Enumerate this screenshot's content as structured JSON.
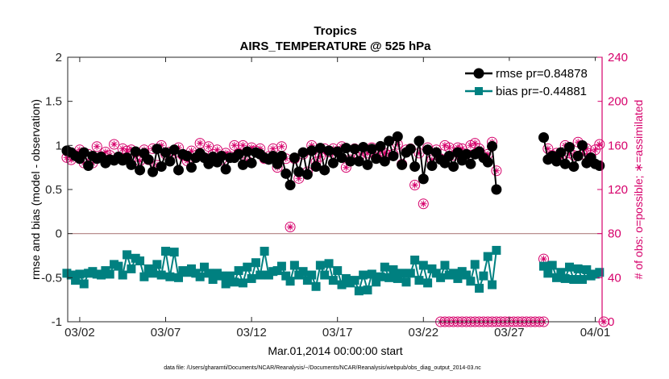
{
  "chart_data": {
    "type": "line",
    "title": "Tropics",
    "subtitle": "AIRS_TEMPERATURE @ 525 hPa",
    "xlabel": "Mar.01,2014 00:00:00 start",
    "ylabel_left": "rmse and bias (model - observation)",
    "ylabel_right": "# of obs: o=possible; ∗=assimilated",
    "ylim_left": [
      -1,
      2
    ],
    "ylim_right": [
      0,
      240
    ],
    "xlim": [
      0.3,
      31.4
    ],
    "yticks_left": [
      "-1",
      "-0.5",
      "0",
      "0.5",
      "1",
      "1.5",
      "2"
    ],
    "yticks_right": [
      "0",
      "40",
      "80",
      "120",
      "160",
      "200",
      "240"
    ],
    "xticks": [
      {
        "x": 1,
        "label": "03/02"
      },
      {
        "x": 6,
        "label": "03/07"
      },
      {
        "x": 11,
        "label": "03/12"
      },
      {
        "x": 16,
        "label": "03/17"
      },
      {
        "x": 21,
        "label": "03/22"
      },
      {
        "x": 26,
        "label": "03/27"
      },
      {
        "x": 31,
        "label": "04/01"
      }
    ],
    "zero_line": 0,
    "footnote": "data file: /Users/gharamti/Documents/NCAR/Reanalysis/~/Documents/NCAR/Reanalysis/webpub/obs_diag_output_2014-03.nc",
    "colors": {
      "rmse": "#000000",
      "bias": "#008080",
      "obs": "#d6006b",
      "zero": "#b08080"
    },
    "series": [
      {
        "name": "rmse",
        "legend": "rmse pr=0.84878",
        "axis": "left",
        "marker": "circle",
        "segments": [
          {
            "x0": 0.25,
            "dx": 0.25,
            "values": [
              0.94,
              0.92,
              0.88,
              0.85,
              0.92,
              0.77,
              0.88,
              0.85,
              0.87,
              0.8,
              0.84,
              0.83,
              0.87,
              0.83,
              0.86,
              0.78,
              0.93,
              0.72,
              0.91,
              0.84,
              0.7,
              0.96,
              0.76,
              0.92,
              0.82,
              0.95,
              0.72,
              0.9,
              0.88,
              0.75,
              0.86,
              0.91,
              0.86,
              0.79,
              0.87,
              0.81,
              0.88,
              0.73,
              0.86,
              0.86,
              0.9,
              0.78,
              0.93,
              0.8,
              0.92,
              0.9,
              0.86,
              0.84,
              0.88,
              0.79,
              0.88,
              0.68,
              0.55,
              0.86,
              0.7,
              0.92,
              0.67,
              0.94,
              0.76,
              0.97,
              0.72,
              0.94,
              0.8,
              0.93,
              0.86,
              0.97,
              0.82,
              0.96,
              0.82,
              0.98,
              0.78,
              0.96,
              0.85,
              0.99,
              0.82,
              1.05,
              0.88,
              1.1,
              0.78,
              0.92,
              0.96,
              0.76,
              1.05,
              0.62,
              0.95,
              0.77,
              0.92,
              0.84,
              0.8,
              0.88,
              0.76,
              0.92,
              0.83,
              0.9,
              0.79,
              0.9,
              0.93,
              0.86,
              0.81,
              0.99,
              0.5
            ]
          },
          {
            "x0": 28.0,
            "dx": 0.25,
            "values": [
              1.09,
              0.84,
              0.88,
              0.82,
              0.92,
              0.79,
              0.98,
              0.76,
              0.88,
              1.0,
              0.8,
              0.86,
              0.79,
              0.77
            ]
          }
        ]
      },
      {
        "name": "bias",
        "legend": "bias pr=-0.44881",
        "axis": "left",
        "marker": "square",
        "segments": [
          {
            "x0": 0.25,
            "dx": 0.25,
            "values": [
              -0.45,
              -0.47,
              -0.53,
              -0.46,
              -0.57,
              -0.45,
              -0.43,
              -0.46,
              -0.47,
              -0.42,
              -0.46,
              -0.35,
              -0.37,
              -0.47,
              -0.24,
              -0.4,
              -0.28,
              -0.31,
              -0.49,
              -0.4,
              -0.45,
              -0.35,
              -0.47,
              -0.2,
              -0.49,
              -0.21,
              -0.5,
              -0.42,
              -0.44,
              -0.4,
              -0.45,
              -0.49,
              -0.38,
              -0.45,
              -0.52,
              -0.45,
              -0.48,
              -0.57,
              -0.48,
              -0.55,
              -0.42,
              -0.56,
              -0.38,
              -0.51,
              -0.33,
              -0.47,
              -0.2,
              -0.47,
              -0.43,
              -0.42,
              -0.37,
              -0.48,
              -0.54,
              -0.36,
              -0.47,
              -0.43,
              -0.53,
              -0.47,
              -0.6,
              -0.36,
              -0.47,
              -0.34,
              -0.53,
              -0.42,
              -0.58,
              -0.51,
              -0.56,
              -0.53,
              -0.65,
              -0.47,
              -0.64,
              -0.46,
              -0.55,
              -0.49,
              -0.38,
              -0.5,
              -0.41,
              -0.51,
              -0.45,
              -0.55,
              -0.45,
              -0.3,
              -0.53,
              -0.36,
              -0.56,
              -0.4,
              -0.45,
              -0.5,
              -0.36,
              -0.47,
              -0.45,
              -0.51,
              -0.43,
              -0.47,
              -0.54,
              -0.35,
              -0.62,
              -0.48,
              -0.26,
              -0.58,
              -0.19
            ]
          },
          {
            "x0": 28.0,
            "dx": 0.25,
            "values": [
              -0.37,
              -0.45,
              -0.36,
              -0.5,
              -0.44,
              -0.51,
              -0.38,
              -0.52,
              -0.4,
              -0.52,
              -0.41,
              -0.48,
              -0.46,
              -0.44
            ]
          }
        ]
      },
      {
        "name": "obs_possible",
        "axis": "right",
        "marker": "open-circle",
        "segments": [
          {
            "x0": 0.25,
            "dx": 0.25,
            "values": [
              149,
              147,
              151,
              156,
              144,
              152,
              144,
              159,
              150,
              154,
              151,
              161,
              149,
              157,
              155,
              156,
              150,
              146,
              156,
              147,
              157,
              142,
              160,
              152,
              154,
              153,
              158,
              151,
              146,
              155,
              151,
              162,
              149,
              159,
              152,
              156,
              147,
              153,
              150,
              160,
              153,
              160,
              146,
              158,
              155,
              157,
              148,
              150,
              157,
              140,
              159,
              148,
              86,
              148,
              130,
              152,
              136,
              160,
              145,
              150,
              157,
              154,
              157,
              151,
              159,
              140,
              147,
              157,
              149,
              155,
              153,
              158,
              149,
              155,
              153,
              151,
              152,
              161,
              143,
              156,
              157,
              124,
              153,
              107,
              158,
              147,
              156,
              148,
              160,
              158,
              151,
              158,
              157,
              152,
              160,
              162,
              157,
              150,
              152,
              163,
              137
            ]
          },
          {
            "x0": 22.0,
            "dx": 0.25,
            "values": [
              0,
              0,
              0,
              0,
              0,
              0,
              0,
              0,
              0,
              0,
              0,
              0,
              0,
              0,
              0,
              0,
              0,
              0,
              0,
              0,
              0,
              0,
              0,
              0,
              0
            ]
          },
          {
            "x0": 28.0,
            "dx": 0.25,
            "values": [
              57,
              157,
              151,
              153,
              149,
              160,
              153,
              151,
              163,
              152,
              157,
              151,
              156,
              161
            ]
          },
          {
            "x0": 31.5,
            "dx": 0.25,
            "values": [
              0
            ]
          }
        ]
      },
      {
        "name": "obs_assimilated",
        "axis": "right",
        "marker": "asterisk",
        "segments": [
          {
            "x0": 0.25,
            "dx": 0.25,
            "values": [
              149,
              147,
              151,
              156,
              144,
              152,
              144,
              159,
              150,
              154,
              151,
              161,
              149,
              157,
              155,
              156,
              150,
              146,
              156,
              147,
              157,
              142,
              160,
              152,
              154,
              153,
              158,
              151,
              146,
              155,
              151,
              162,
              149,
              159,
              152,
              156,
              147,
              153,
              150,
              160,
              153,
              160,
              146,
              158,
              155,
              157,
              148,
              150,
              157,
              140,
              159,
              148,
              86,
              148,
              130,
              152,
              136,
              160,
              145,
              150,
              157,
              154,
              157,
              151,
              159,
              140,
              147,
              157,
              149,
              155,
              153,
              158,
              149,
              155,
              153,
              151,
              152,
              161,
              143,
              156,
              157,
              124,
              153,
              107,
              158,
              147,
              156,
              148,
              160,
              158,
              151,
              158,
              157,
              152,
              160,
              162,
              157,
              150,
              152,
              163,
              137
            ]
          },
          {
            "x0": 22.0,
            "dx": 0.25,
            "values": [
              0,
              0,
              0,
              0,
              0,
              0,
              0,
              0,
              0,
              0,
              0,
              0,
              0,
              0,
              0,
              0,
              0,
              0,
              0,
              0,
              0,
              0,
              0,
              0,
              0
            ]
          },
          {
            "x0": 28.0,
            "dx": 0.25,
            "values": [
              57,
              157,
              151,
              153,
              149,
              160,
              153,
              151,
              163,
              152,
              157,
              151,
              156,
              161
            ]
          },
          {
            "x0": 31.5,
            "dx": 0.25,
            "values": [
              0
            ]
          }
        ]
      }
    ]
  }
}
